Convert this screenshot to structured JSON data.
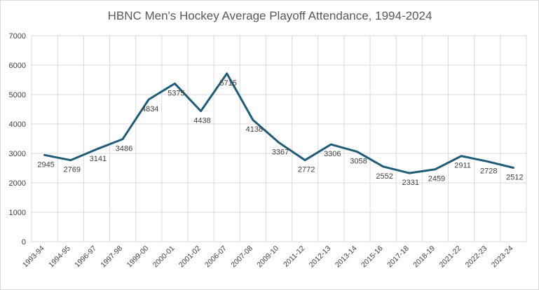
{
  "chart_data": {
    "type": "line",
    "title": "HBNC Men's Hockey Average Playoff Attendance, 1994-2024",
    "xlabel": "",
    "ylabel": "",
    "categories": [
      "1993-94",
      "1994-95",
      "1996-97",
      "1997-98",
      "1999-00",
      "2000-01",
      "2001-02",
      "2006-07",
      "2007-08",
      "2009-10",
      "2011-12",
      "2012-13",
      "2013-14",
      "2015-16",
      "2017-18",
      "2018-19",
      "2021-22",
      "2022-23",
      "2023-24"
    ],
    "series": [
      {
        "values": [
          2945,
          2769,
          3141,
          3486,
          4834,
          5375,
          4438,
          5715,
          4138,
          3367,
          2772,
          3306,
          3058,
          2552,
          2331,
          2459,
          2911,
          2728,
          2512
        ],
        "color": "#1f5c7a"
      }
    ],
    "ylim": [
      0,
      7000
    ],
    "yticks": [
      0,
      1000,
      2000,
      3000,
      4000,
      5000,
      6000,
      7000
    ],
    "grid": true,
    "legend": "none",
    "data_labels": true
  }
}
